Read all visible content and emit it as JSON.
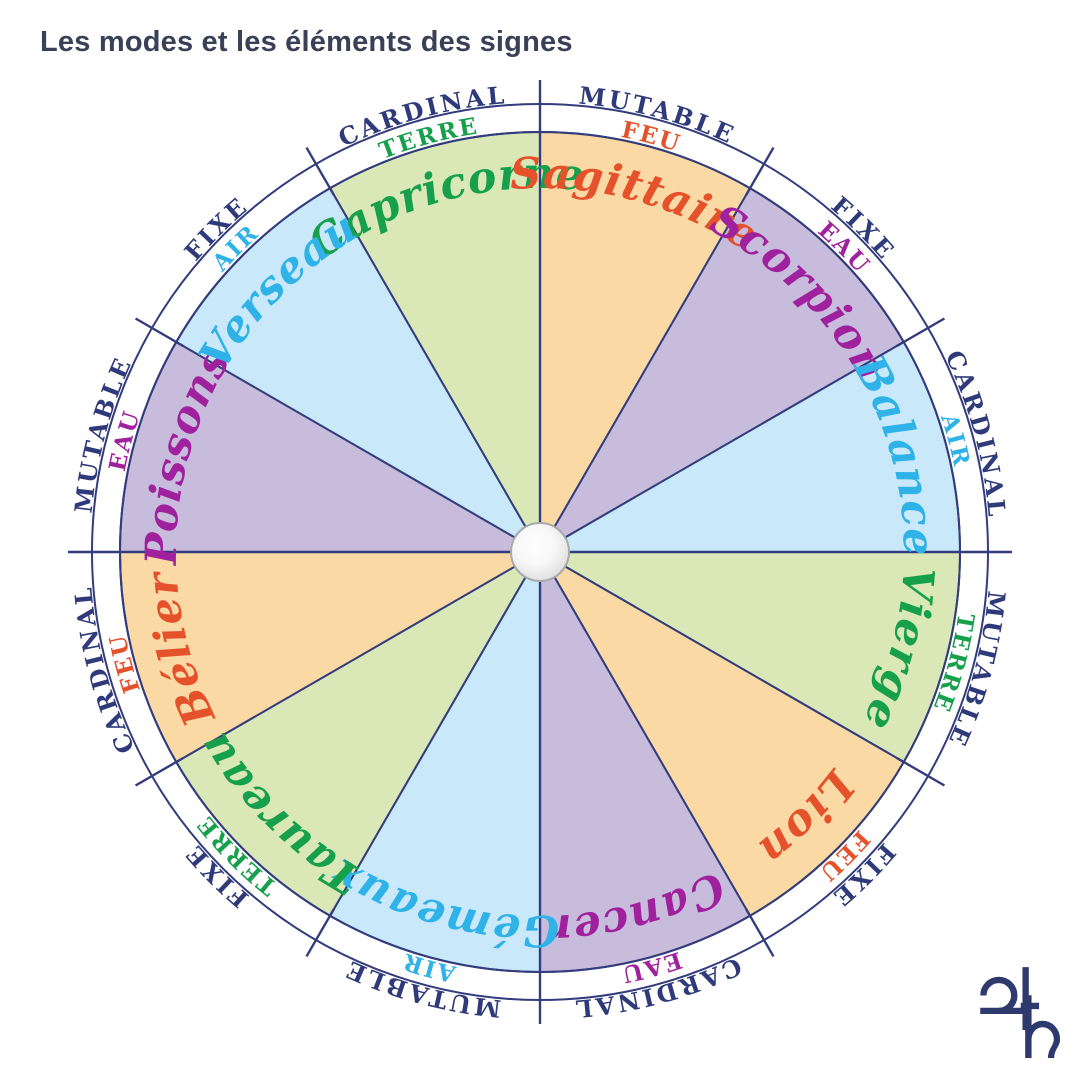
{
  "title": "Les modes et les éléments des signes",
  "wheel": {
    "signs": [
      {
        "name": "Capricorne",
        "element": "TERRE",
        "mode": "CARDINAL",
        "mid_angle": 105
      },
      {
        "name": "Sagittaire",
        "element": "FEU",
        "mode": "MUTABLE",
        "mid_angle": 75
      },
      {
        "name": "Scorpion",
        "element": "EAU",
        "mode": "FIXE",
        "mid_angle": 45
      },
      {
        "name": "Balance",
        "element": "AIR",
        "mode": "CARDINAL",
        "mid_angle": 15
      },
      {
        "name": "Vierge",
        "element": "TERRE",
        "mode": "MUTABLE",
        "mid_angle": -15
      },
      {
        "name": "Lion",
        "element": "FEU",
        "mode": "FIXE",
        "mid_angle": -45
      },
      {
        "name": "Cancer",
        "element": "EAU",
        "mode": "CARDINAL",
        "mid_angle": -75
      },
      {
        "name": "Gémeaux",
        "element": "AIR",
        "mode": "MUTABLE",
        "mid_angle": -105
      },
      {
        "name": "Taureau",
        "element": "TERRE",
        "mode": "FIXE",
        "mid_angle": -135
      },
      {
        "name": "Bélier",
        "element": "FEU",
        "mode": "CARDINAL",
        "mid_angle": -165
      },
      {
        "name": "Poissons",
        "element": "EAU",
        "mode": "MUTABLE",
        "mid_angle": 165
      },
      {
        "name": "Verseau",
        "element": "AIR",
        "mode": "FIXE",
        "mid_angle": 135
      }
    ],
    "element_text_colors": {
      "FEU": "#e4512b",
      "TERRE": "#16a04c",
      "EAU": "#a0219e",
      "AIR": "#2fb2e8"
    },
    "element_fill_colors": {
      "FEU": "#fbd9a4",
      "TERRE": "#d9e8b6",
      "EAU": "#c8bcdc",
      "AIR": "#c9e9fb"
    },
    "mode_text_color": "#2f3a7a",
    "line_color": "#333c7c",
    "center_icon_name": "pearl"
  },
  "title_color": "#3a4156",
  "logo": {
    "jupiter_symbol": "♃",
    "saturn_symbol": "♄",
    "color": "#2e3a6e"
  }
}
